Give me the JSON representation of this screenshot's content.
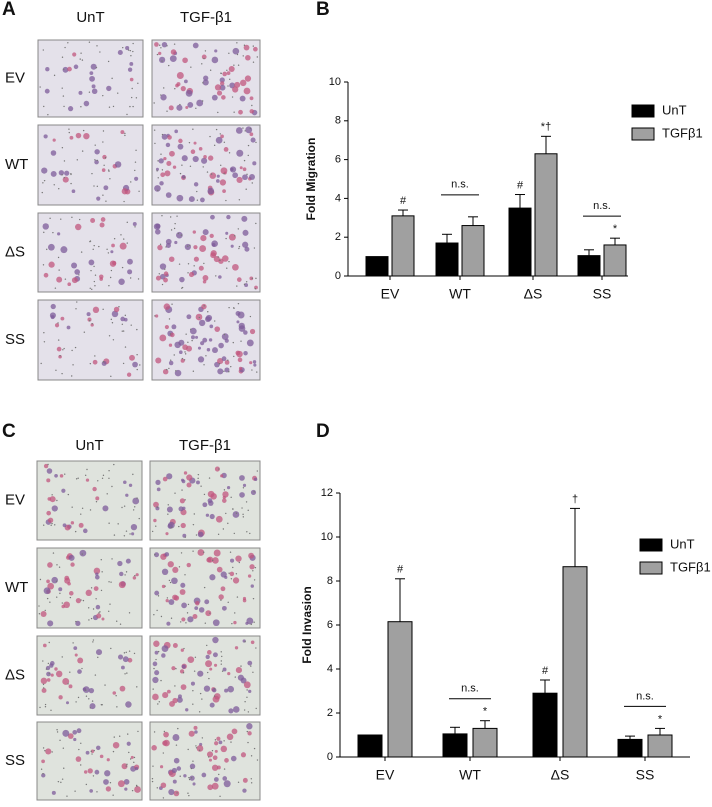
{
  "panel_labels": [
    "A",
    "B",
    "C",
    "D"
  ],
  "image_panels": [
    {
      "columns": [
        "UnT",
        "TGF-β1"
      ],
      "rows": [
        "EV",
        "WT",
        "ΔS",
        "SS"
      ]
    },
    {
      "columns": [
        "UnT",
        "TGF-β1"
      ],
      "rows": [
        "EV",
        "WT",
        "ΔS",
        "SS"
      ]
    }
  ],
  "chart_data": [
    {
      "type": "bar",
      "y_label": "Fold Migration",
      "categories": [
        "EV",
        "WT",
        "ΔS",
        "SS"
      ],
      "series": [
        {
          "name": "UnT",
          "color": "#000000",
          "values": [
            1,
            1.7,
            3.5,
            1.05
          ],
          "errors": [
            0,
            0.45,
            0.7,
            0.3
          ],
          "marks": [
            null,
            null,
            "#",
            null
          ]
        },
        {
          "name": "TGFβ1",
          "color": "#a0a0a0",
          "values": [
            3.1,
            2.6,
            6.3,
            1.6
          ],
          "errors": [
            0.3,
            0.45,
            0.9,
            0.35
          ],
          "marks": [
            "#",
            null,
            "*†",
            "*"
          ]
        }
      ],
      "bracket_labels": [
        null,
        "n.s.",
        null,
        "n.s."
      ],
      "ylim": [
        0,
        10
      ],
      "yticks": [
        0,
        2,
        4,
        6,
        8,
        10
      ]
    },
    {
      "type": "bar",
      "y_label": "Fold Invasion",
      "categories": [
        "EV",
        "WT",
        "ΔS",
        "SS"
      ],
      "series": [
        {
          "name": "UnT",
          "color": "#000000",
          "values": [
            1,
            1.05,
            2.9,
            0.8
          ],
          "errors": [
            0,
            0.3,
            0.6,
            0.15
          ],
          "marks": [
            null,
            null,
            "#",
            null
          ]
        },
        {
          "name": "TGFβ1",
          "color": "#a0a0a0",
          "values": [
            6.15,
            1.3,
            8.65,
            1.0
          ],
          "errors": [
            1.95,
            0.35,
            2.65,
            0.3
          ],
          "marks": [
            "#",
            "*",
            "†",
            "*"
          ]
        }
      ],
      "bracket_labels": [
        null,
        "n.s.",
        null,
        "n.s."
      ],
      "ylim": [
        0,
        12
      ],
      "yticks": [
        0,
        2,
        4,
        6,
        8,
        10,
        12
      ]
    }
  ]
}
